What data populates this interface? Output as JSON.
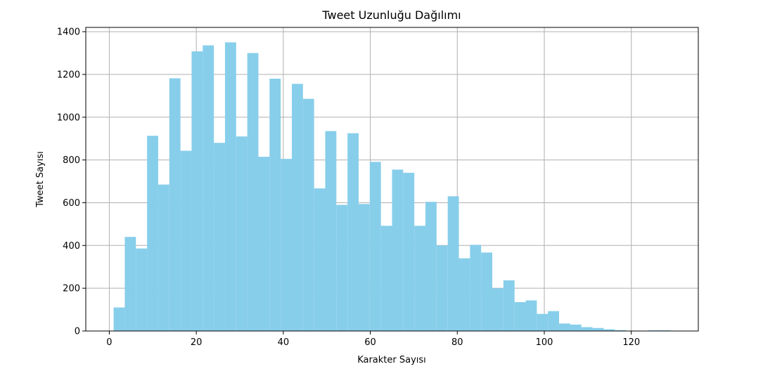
{
  "chart_data": {
    "type": "bar",
    "title": "Tweet Uzunluğu Dağılımı",
    "xlabel": "Karakter Sayısı",
    "ylabel": "Tweet Sayısı",
    "xlim": [
      -5.4,
      135.4
    ],
    "ylim": [
      0,
      1420
    ],
    "x_ticks": [
      0,
      20,
      40,
      60,
      80,
      100,
      120
    ],
    "y_ticks": [
      0,
      200,
      400,
      600,
      800,
      1000,
      1200,
      1400
    ],
    "grid": true,
    "bar_color": "#87ceeb",
    "bins": [
      [
        1.0,
        3.56,
        110
      ],
      [
        3.56,
        6.12,
        440
      ],
      [
        6.12,
        8.68,
        386
      ],
      [
        8.68,
        11.24,
        913
      ],
      [
        11.24,
        13.8,
        685
      ],
      [
        13.8,
        16.36,
        1182
      ],
      [
        16.36,
        18.92,
        843
      ],
      [
        18.92,
        21.48,
        1308
      ],
      [
        21.48,
        24.04,
        1336
      ],
      [
        24.04,
        26.6,
        880
      ],
      [
        26.6,
        29.16,
        1350
      ],
      [
        29.16,
        31.72,
        910
      ],
      [
        31.72,
        34.28,
        1300
      ],
      [
        34.28,
        36.84,
        815
      ],
      [
        36.84,
        39.4,
        1180
      ],
      [
        39.4,
        41.96,
        805
      ],
      [
        41.96,
        44.52,
        1156
      ],
      [
        44.52,
        47.08,
        1086
      ],
      [
        47.08,
        49.64,
        667
      ],
      [
        49.64,
        52.2,
        935
      ],
      [
        52.2,
        54.76,
        590
      ],
      [
        54.76,
        57.32,
        925
      ],
      [
        57.32,
        59.88,
        594
      ],
      [
        59.88,
        62.44,
        791
      ],
      [
        62.44,
        65.0,
        492
      ],
      [
        65.0,
        67.56,
        755
      ],
      [
        67.56,
        70.12,
        740
      ],
      [
        70.12,
        72.68,
        492
      ],
      [
        72.68,
        75.24,
        604
      ],
      [
        75.24,
        77.8,
        400
      ],
      [
        77.8,
        80.36,
        630
      ],
      [
        80.36,
        82.92,
        340
      ],
      [
        82.92,
        85.48,
        403
      ],
      [
        85.48,
        88.04,
        367
      ],
      [
        88.04,
        90.6,
        200
      ],
      [
        90.6,
        93.16,
        237
      ],
      [
        93.16,
        95.72,
        135
      ],
      [
        95.72,
        98.28,
        143
      ],
      [
        98.28,
        100.84,
        80
      ],
      [
        100.84,
        103.4,
        93
      ],
      [
        103.4,
        105.96,
        35
      ],
      [
        105.96,
        108.52,
        30
      ],
      [
        108.52,
        111.08,
        18
      ],
      [
        111.08,
        113.64,
        14
      ],
      [
        113.64,
        116.2,
        8
      ],
      [
        116.2,
        118.76,
        4
      ],
      [
        118.76,
        121.32,
        0
      ],
      [
        121.32,
        123.88,
        0
      ],
      [
        123.88,
        126.44,
        3
      ],
      [
        126.44,
        129.0,
        3
      ]
    ]
  }
}
